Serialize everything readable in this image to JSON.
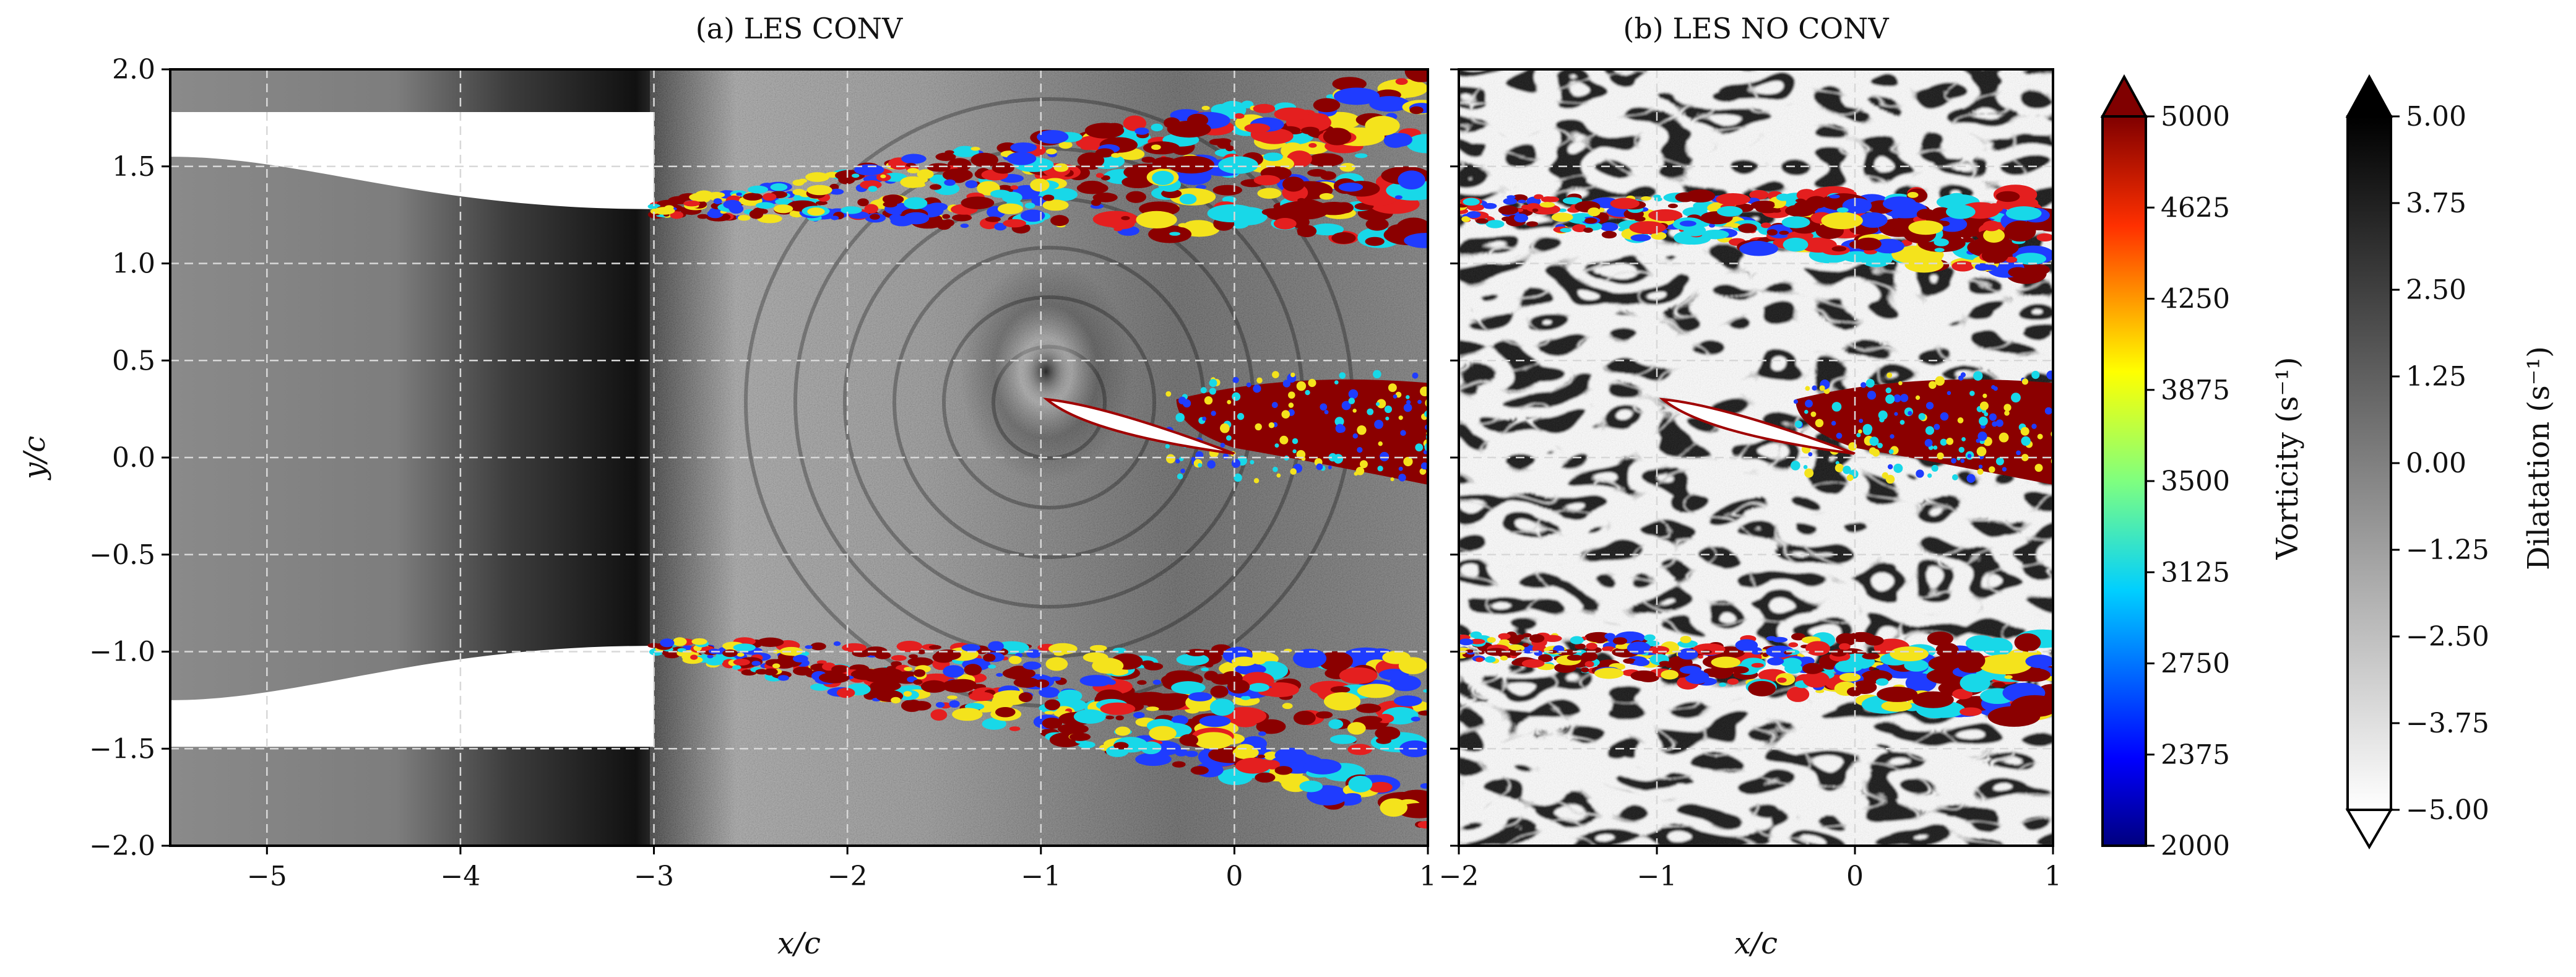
{
  "chart_data": [
    {
      "type": "heatmap",
      "title": "(a) LES CONV",
      "xlabel": "x/c",
      "ylabel": "y/c",
      "xlim": [
        -5.5,
        1
      ],
      "ylim": [
        -2.0,
        2.0
      ],
      "xticks": [
        -5,
        -4,
        -3,
        -2,
        -1,
        0,
        1
      ],
      "xtick_labels": [
        "−5",
        "−4",
        "−3",
        "−2",
        "−1",
        "0",
        "1"
      ],
      "yticks": [
        2.0,
        1.5,
        1.0,
        0.5,
        0.0,
        -0.5,
        -1.0,
        -1.5,
        -2.0
      ],
      "ytick_labels": [
        "2.0",
        "1.5",
        "1.0",
        "0.5",
        "0.0",
        "−0.5",
        "−1.0",
        "−1.5",
        "−2.0"
      ],
      "grid": true,
      "nozzle_exit_x": -3.0,
      "nozzle_lip_y": 1.28,
      "nozzle_lip_y_lower": -0.97,
      "nozzle_inlet_y_upper": 1.55,
      "nozzle_inlet_y_lower": -1.25,
      "airfoil_leading_edge": [
        -0.97,
        0.3
      ],
      "airfoil_trailing_edge": [
        0.0,
        0.02
      ],
      "fields": [
        "Dilatation (grayscale)",
        "Vorticity (color overlay)"
      ]
    },
    {
      "type": "heatmap",
      "title": "(b) LES NO CONV",
      "xlabel": "x/c",
      "ylabel": "",
      "xlim": [
        -2.0,
        1
      ],
      "ylim": [
        -2.0,
        2.0
      ],
      "xticks": [
        -2,
        -1,
        0,
        1
      ],
      "xtick_labels": [
        "−2",
        "−1",
        "0",
        "1"
      ],
      "yticks": [
        2.0,
        1.5,
        1.0,
        0.5,
        0.0,
        -0.5,
        -1.0,
        -1.5,
        -2.0
      ],
      "grid": true,
      "shear_layer_y_upper": 1.28,
      "shear_layer_y_lower": -0.97,
      "airfoil_leading_edge": [
        -0.97,
        0.3
      ],
      "airfoil_trailing_edge": [
        0.0,
        0.02
      ],
      "fields": [
        "Dilatation (grayscale)",
        "Vorticity (color overlay)"
      ]
    }
  ],
  "colorbars": {
    "vorticity": {
      "label": "Vorticity (s⁻¹)",
      "range": [
        2000,
        5000
      ],
      "tick_values": [
        5000,
        4625,
        4250,
        3875,
        3500,
        3125,
        2750,
        2375,
        2000
      ],
      "tick_labels": [
        "5000",
        "4625",
        "4250",
        "3875",
        "3500",
        "3125",
        "2750",
        "2375",
        "2000"
      ],
      "colors": [
        "#00007f",
        "#0000ff",
        "#007fff",
        "#00ffff",
        "#7fff7f",
        "#ffff00",
        "#ff7f00",
        "#ff0000",
        "#7f0000"
      ],
      "extend": "max"
    },
    "dilatation": {
      "label": "Dilatation (s⁻¹)",
      "range": [
        -5.0,
        5.0
      ],
      "tick_values": [
        5.0,
        3.75,
        2.5,
        1.25,
        0.0,
        -1.25,
        -2.5,
        -3.75,
        -5.0
      ],
      "tick_labels": [
        "5.00",
        "3.75",
        "2.50",
        "1.25",
        "0.00",
        "−1.25",
        "−2.50",
        "−3.75",
        "−5.00"
      ],
      "colors": [
        "#ffffff",
        "#000000"
      ],
      "extend": "both"
    }
  },
  "colors": {
    "vort_blue": "#1f3cff",
    "vort_cyan": "#18d8e8",
    "vort_yellow": "#f4e31c",
    "vort_red": "#e41f1f",
    "vort_dark": "#8b0000",
    "panel_bg": "#7a7a7a"
  }
}
